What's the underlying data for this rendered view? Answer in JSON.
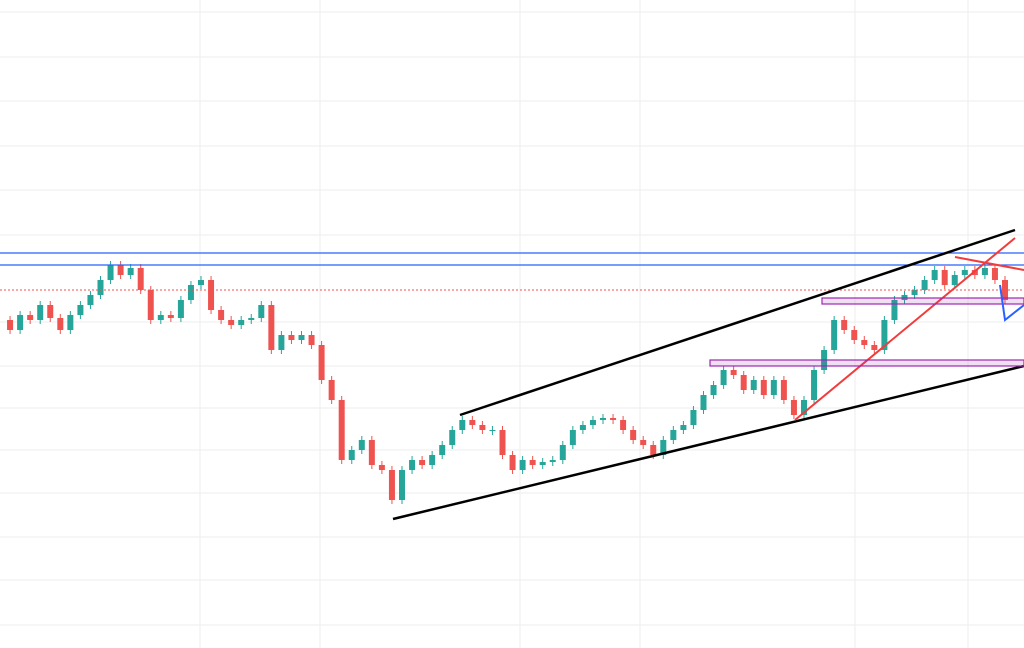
{
  "chart_data": {
    "type": "candlestick",
    "values": [
      328,
      318,
      333,
      328,
      343,
      330,
      318,
      333,
      343,
      353,
      368,
      383,
      373,
      380,
      358,
      328,
      333,
      330,
      348,
      363,
      368,
      338,
      328,
      323,
      328,
      330,
      343,
      298,
      313,
      308,
      313,
      303,
      268,
      248,
      188,
      198,
      208,
      183,
      178,
      148,
      178,
      188,
      183,
      193,
      203,
      218,
      228,
      223,
      218,
      218,
      193,
      178,
      188,
      183,
      186,
      188,
      203,
      218,
      223,
      228,
      230,
      228,
      218,
      208,
      203,
      193,
      208,
      218,
      223,
      238,
      253,
      263,
      278,
      273,
      258,
      268,
      253,
      268,
      248,
      233,
      248,
      278,
      298,
      328,
      318,
      308,
      303,
      298,
      328,
      348,
      353,
      358,
      368,
      378,
      363,
      373,
      378,
      373,
      380,
      368,
      348
    ],
    "ylim": [
      0,
      648
    ],
    "up_color": "#26a69a",
    "down_color": "#ef5350"
  }
}
